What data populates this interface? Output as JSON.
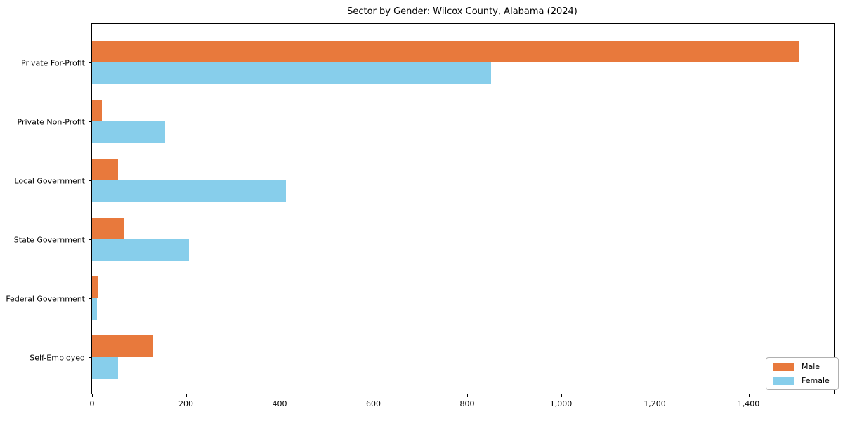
{
  "chart_data": {
    "type": "bar",
    "orientation": "horizontal",
    "title": "Sector by Gender: Wilcox County, Alabama (2024)",
    "xlabel": "",
    "ylabel": "",
    "grid": false,
    "legend_position": "lower right",
    "categories": [
      "Private For-Profit",
      "Private Non-Profit",
      "Local Government",
      "State Government",
      "Federal Government",
      "Self-Employed"
    ],
    "series": [
      {
        "name": "Male",
        "color": "#e8793c",
        "values": [
          1507,
          21,
          55,
          69,
          12,
          130
        ]
      },
      {
        "name": "Female",
        "color": "#87ceeb",
        "values": [
          851,
          156,
          413,
          207,
          10,
          56
        ]
      }
    ],
    "xlim": [
      0,
      1582
    ],
    "x_ticks": [
      {
        "value": 0,
        "label": "0"
      },
      {
        "value": 200,
        "label": "200"
      },
      {
        "value": 400,
        "label": "400"
      },
      {
        "value": 600,
        "label": "600"
      },
      {
        "value": 800,
        "label": "800"
      },
      {
        "value": 1000,
        "label": "1,000"
      },
      {
        "value": 1200,
        "label": "1,200"
      },
      {
        "value": 1400,
        "label": "1,400"
      }
    ]
  },
  "colors": {
    "background": "#ffffff",
    "spine": "#000000",
    "text": "#000000",
    "legend_border": "#b0b0b0"
  }
}
